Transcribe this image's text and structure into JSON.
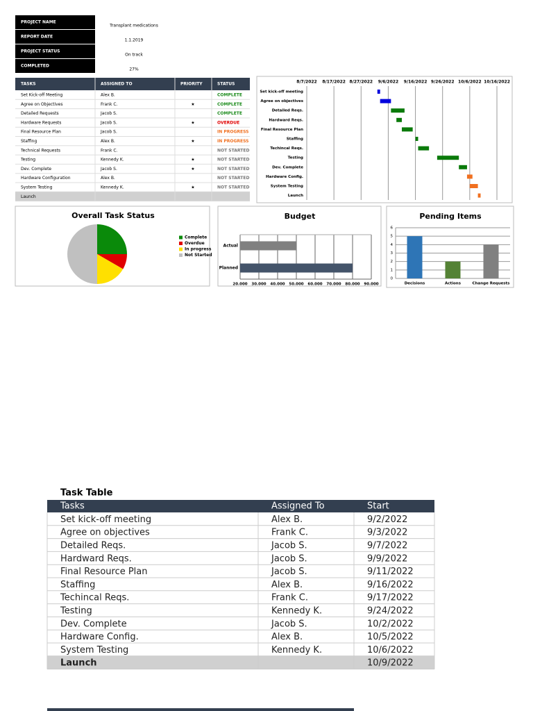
{
  "summary": {
    "rows": [
      [
        "PROJECT NAME",
        "Transplant medications"
      ],
      [
        "REPORT DATE",
        "1.1.2019"
      ],
      [
        "PROJECT STATUS",
        "On track"
      ],
      [
        "COMPLETED",
        "27%"
      ]
    ]
  },
  "status_table": {
    "headers": [
      "TASKS",
      "ASSIGNED TO",
      "PRIORITY",
      "STATUS"
    ],
    "status_colors": {
      "COMPLETE": "#1a8a1a",
      "OVERDUE": "#e00000",
      "IN PROGRESS": "#f07020",
      "NOT STARTED": "#777777"
    },
    "rows": [
      [
        "Set Kick-off Meeting",
        "Alex B.",
        null,
        "COMPLETE"
      ],
      [
        "Agree on Objectives",
        "Frank C.",
        "★",
        "COMPLETE"
      ],
      [
        "Detailed Requests",
        "Jacob S.",
        null,
        "COMPLETE"
      ],
      [
        "Hardware Requests",
        "Jacob S.",
        "★",
        "OVERDUE"
      ],
      [
        "Final Resource Plan",
        "Jacob S.",
        null,
        "IN PROGRESS"
      ],
      [
        "Staffing",
        "Alex B.",
        "★",
        "IN PROGRESS"
      ],
      [
        "Technical Requests",
        "Frank C.",
        null,
        "NOT STARTED"
      ],
      [
        "Testing",
        "Kennedy K.",
        "★",
        "NOT STARTED"
      ],
      [
        "Dev. Complete",
        "Jacob S.",
        "★",
        "NOT STARTED"
      ],
      [
        "Hardware Configuration",
        "Alex B.",
        null,
        "NOT STARTED"
      ],
      [
        "System Testing",
        "Kennedy K.",
        "★",
        "NOT STARTED"
      ],
      [
        "Launch",
        null,
        null,
        null
      ]
    ]
  },
  "chart_data": [
    {
      "type": "gantt",
      "categories": [
        "Set kick-off meeting",
        "Agree on objectives",
        "Detailed Reqs.",
        "Hardward Reqs.",
        "Final Resource Plan",
        "Staffing",
        "Techincal Reqs.",
        "Testing",
        "Dev. Complete",
        "Hardware Config.",
        "System Testing",
        "Launch"
      ],
      "starts": [
        "9/2/2022",
        "9/3/2022",
        "9/7/2022",
        "9/9/2022",
        "9/11/2022",
        "9/16/2022",
        "9/17/2022",
        "9/24/2022",
        "10/2/2022",
        "10/5/2022",
        "10/6/2022",
        "10/9/2022"
      ],
      "durations": [
        1,
        4,
        5,
        2,
        4,
        1,
        4,
        8,
        3,
        2,
        3,
        1
      ],
      "colors": [
        "#0000dd",
        "#0000dd",
        "#0a7a0a",
        "#0a7a0a",
        "#0a7a0a",
        "#0a7a0a",
        "#0a7a0a",
        "#0a7a0a",
        "#0a7a0a",
        "#f07020",
        "#f07020",
        "#f07020"
      ],
      "xlim": [
        "8/7/2022",
        "10/16/2022"
      ],
      "xticks": [
        "8/7/2022",
        "8/17/2022",
        "8/27/2022",
        "9/6/2022",
        "9/16/2022",
        "9/26/2022",
        "10/6/2022",
        "10/16/2022"
      ],
      "grid": true
    },
    {
      "type": "pie",
      "title": "Overall Task Status",
      "categories": [
        "Complete",
        "Overdue",
        "In progress",
        "Not Started"
      ],
      "values": [
        3,
        1,
        2,
        6
      ],
      "colors": [
        "#0a8a0a",
        "#e00000",
        "#ffe000",
        "#c0c0c0"
      ]
    },
    {
      "type": "hbar",
      "title": "Budget",
      "categories": [
        "Actual",
        "Planned"
      ],
      "values": [
        50000,
        80000
      ],
      "colors": [
        "#808080",
        "#44546a"
      ],
      "xlim": [
        20000,
        90000
      ],
      "xticks": [
        {
          "value": 20000,
          "label": "20.000"
        },
        {
          "value": 30000,
          "label": "30.000"
        },
        {
          "value": 40000,
          "label": "40.000"
        },
        {
          "value": 50000,
          "label": "50.000"
        },
        {
          "value": 60000,
          "label": "60.000"
        },
        {
          "value": 70000,
          "label": "70.000"
        },
        {
          "value": 80000,
          "label": "80.000"
        },
        {
          "value": 90000,
          "label": "90.000"
        }
      ],
      "grid": true
    },
    {
      "type": "bar",
      "title": "Pending Items",
      "categories": [
        "Decisions",
        "Actions",
        "Change Requests"
      ],
      "values": [
        5,
        2,
        4
      ],
      "colors": [
        "#2e75b6",
        "#548235",
        "#808080"
      ],
      "ylim": [
        0,
        6
      ],
      "yticks": [
        0,
        1,
        2,
        3,
        4,
        5,
        6
      ],
      "grid": true
    }
  ],
  "task_table": {
    "title": "Task Table",
    "headers": [
      "Tasks",
      "Assigned To",
      "Start"
    ],
    "rows": [
      [
        "Set kick-off meeting",
        "Alex B.",
        "9/2/2022"
      ],
      [
        "Agree on objectives",
        "Frank C.",
        "9/3/2022"
      ],
      [
        "Detailed Reqs.",
        "Jacob S.",
        "9/7/2022"
      ],
      [
        "Hardward Reqs.",
        "Jacob S.",
        "9/9/2022"
      ],
      [
        "Final Resource Plan",
        "Jacob S.",
        "9/11/2022"
      ],
      [
        "Staffing",
        "Alex B.",
        "9/16/2022"
      ],
      [
        "Techincal Reqs.",
        "Frank C.",
        "9/17/2022"
      ],
      [
        "Testing",
        "Kennedy K.",
        "9/24/2022"
      ],
      [
        "Dev. Complete",
        "Jacob S.",
        "10/2/2022"
      ],
      [
        "Hardware Config.",
        "Alex B.",
        "10/5/2022"
      ],
      [
        "System Testing",
        "Kennedy K.",
        "10/6/2022"
      ],
      [
        "Launch",
        null,
        "10/9/2022"
      ]
    ]
  }
}
